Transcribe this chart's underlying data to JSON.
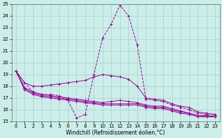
{
  "xlabel": "Windchill (Refroidissement éolien,°C)",
  "background_color": "#cceee8",
  "line_color": "#990099",
  "grid_color": "#aacccc",
  "xlim": [
    -0.5,
    23.5
  ],
  "ylim": [
    15,
    25
  ],
  "yticks": [
    15,
    16,
    17,
    18,
    19,
    20,
    21,
    22,
    23,
    24,
    25
  ],
  "xticks": [
    0,
    1,
    2,
    3,
    4,
    5,
    6,
    7,
    8,
    9,
    10,
    11,
    12,
    13,
    14,
    15,
    16,
    17,
    18,
    19,
    20,
    21,
    22,
    23
  ],
  "series": [
    {
      "name": "peak_line",
      "x": [
        0,
        1,
        2,
        3,
        4,
        5,
        6,
        7,
        8,
        9,
        10,
        11,
        12,
        13,
        14,
        15,
        16,
        17,
        18,
        19,
        20,
        21,
        22,
        23
      ],
      "y": [
        19.3,
        18.3,
        17.5,
        17.3,
        17.3,
        17.2,
        16.8,
        15.3,
        15.6,
        19.0,
        22.1,
        23.3,
        24.9,
        24.0,
        21.5,
        16.9,
        16.8,
        16.7,
        16.4,
        16.2,
        16.0,
        15.7,
        15.6,
        15.5
      ],
      "linestyle": "--",
      "marker": "+"
    },
    {
      "name": "flat_high",
      "x": [
        0,
        1,
        2,
        3,
        4,
        5,
        6,
        7,
        8,
        9,
        10,
        11,
        12,
        13,
        14,
        15,
        16,
        17,
        18,
        19,
        20,
        21,
        22,
        23
      ],
      "y": [
        19.3,
        18.3,
        18.0,
        18.0,
        18.1,
        18.2,
        18.3,
        18.4,
        18.5,
        18.8,
        19.0,
        18.9,
        18.8,
        18.6,
        18.0,
        17.0,
        16.9,
        16.8,
        16.5,
        16.3,
        16.2,
        15.8,
        15.7,
        15.6
      ],
      "linestyle": "-",
      "marker": "+"
    },
    {
      "name": "flat_mid1",
      "x": [
        0,
        1,
        2,
        3,
        4,
        5,
        6,
        7,
        8,
        9,
        10,
        11,
        12,
        13,
        14,
        15,
        16,
        17,
        18,
        19,
        20,
        21,
        22,
        23
      ],
      "y": [
        19.3,
        17.9,
        17.5,
        17.3,
        17.2,
        17.1,
        17.0,
        16.9,
        16.8,
        16.7,
        16.6,
        16.7,
        16.8,
        16.7,
        16.6,
        16.4,
        16.3,
        16.3,
        16.1,
        15.9,
        15.7,
        15.5,
        15.5,
        15.4
      ],
      "linestyle": "-",
      "marker": "+"
    },
    {
      "name": "flat_mid2",
      "x": [
        0,
        1,
        2,
        3,
        4,
        5,
        6,
        7,
        8,
        9,
        10,
        11,
        12,
        13,
        14,
        15,
        16,
        17,
        18,
        19,
        20,
        21,
        22,
        23
      ],
      "y": [
        19.3,
        17.8,
        17.4,
        17.2,
        17.1,
        17.0,
        16.9,
        16.8,
        16.7,
        16.6,
        16.5,
        16.5,
        16.5,
        16.5,
        16.5,
        16.3,
        16.2,
        16.2,
        16.0,
        15.8,
        15.7,
        15.5,
        15.4,
        15.4
      ],
      "linestyle": "-",
      "marker": "+"
    },
    {
      "name": "flat_low",
      "x": [
        0,
        1,
        2,
        3,
        4,
        5,
        6,
        7,
        8,
        9,
        10,
        11,
        12,
        13,
        14,
        15,
        16,
        17,
        18,
        19,
        20,
        21,
        22,
        23
      ],
      "y": [
        19.3,
        17.7,
        17.3,
        17.1,
        17.0,
        16.9,
        16.8,
        16.7,
        16.6,
        16.5,
        16.4,
        16.4,
        16.4,
        16.4,
        16.4,
        16.2,
        16.1,
        16.1,
        15.9,
        15.7,
        15.6,
        15.4,
        15.4,
        15.4
      ],
      "linestyle": "-",
      "marker": "+"
    }
  ]
}
